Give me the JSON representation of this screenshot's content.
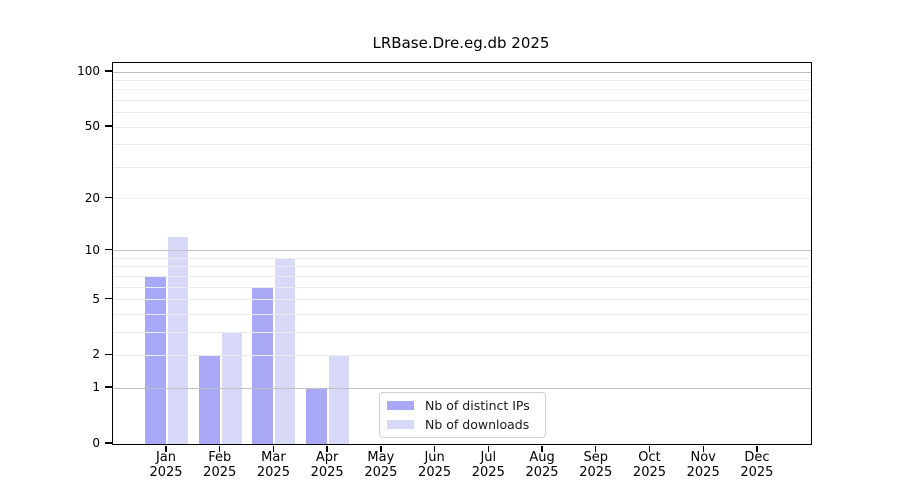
{
  "chart_data": {
    "type": "bar",
    "title": "LRBase.Dre.eg.db 2025",
    "categories": [
      "Jan",
      "Feb",
      "Mar",
      "Apr",
      "May",
      "Jun",
      "Jul",
      "Aug",
      "Sep",
      "Oct",
      "Nov",
      "Dec"
    ],
    "x_year_label": "2025",
    "series": [
      {
        "name": "Nb of distinct IPs",
        "color": "#a8a8f6",
        "values": [
          7,
          2,
          6,
          1,
          0,
          0,
          0,
          0,
          0,
          0,
          0,
          0
        ]
      },
      {
        "name": "Nb of downloads",
        "color": "#d8d8f8",
        "values": [
          12,
          3,
          9,
          2,
          0,
          0,
          0,
          0,
          0,
          0,
          0,
          0
        ]
      }
    ],
    "yscale": "log1p",
    "ylim": [
      0,
      112
    ],
    "yticks": [
      0,
      1,
      2,
      5,
      10,
      20,
      50,
      100
    ],
    "major_gridlines": [
      1,
      10,
      100
    ],
    "minor_gridlines": [
      2,
      3,
      4,
      5,
      6,
      7,
      8,
      9,
      20,
      30,
      40,
      50,
      60,
      70,
      80,
      90
    ],
    "grid": "horizontal",
    "legend_position": "inside-bottom-center"
  },
  "colors": {
    "major_grid": "#c0c0c0",
    "minor_grid": "#ebebeb",
    "axis": "#000000",
    "background": "#ffffff"
  }
}
